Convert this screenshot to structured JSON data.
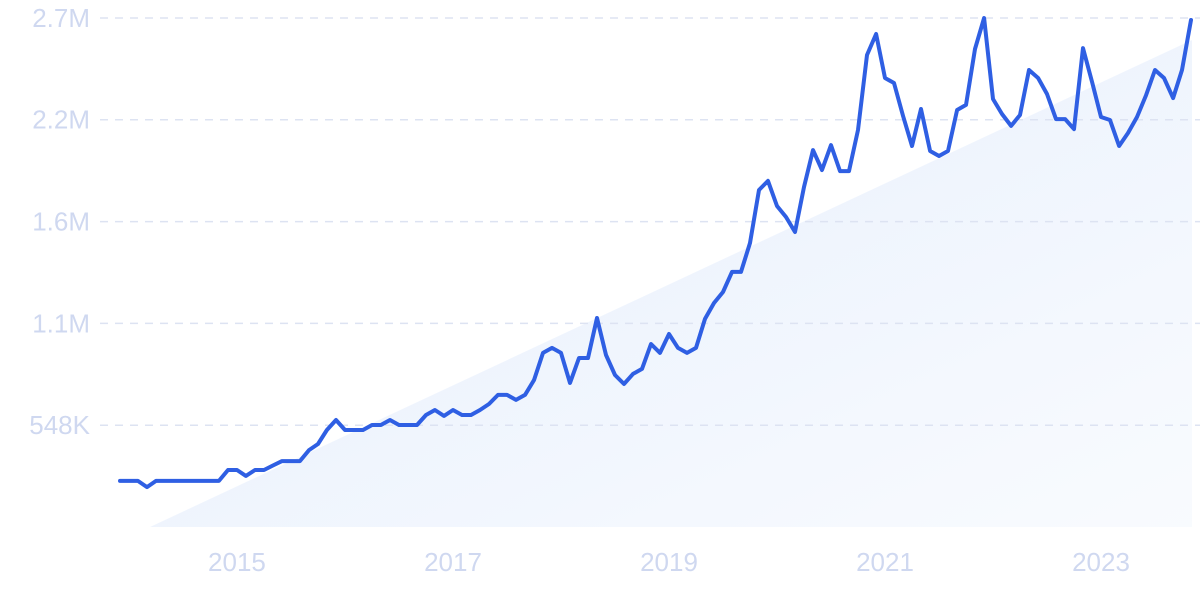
{
  "chart_data": {
    "type": "line",
    "x": [
      2013.917,
      2014.0,
      2014.083,
      2014.167,
      2014.25,
      2014.333,
      2014.417,
      2014.5,
      2014.583,
      2014.667,
      2014.75,
      2014.833,
      2014.917,
      2015.0,
      2015.083,
      2015.167,
      2015.25,
      2015.333,
      2015.417,
      2015.5,
      2015.583,
      2015.667,
      2015.75,
      2015.833,
      2015.917,
      2016.0,
      2016.083,
      2016.167,
      2016.25,
      2016.333,
      2016.417,
      2016.5,
      2016.583,
      2016.667,
      2016.75,
      2016.833,
      2016.917,
      2017.0,
      2017.083,
      2017.167,
      2017.25,
      2017.333,
      2017.417,
      2017.5,
      2017.583,
      2017.667,
      2017.75,
      2017.833,
      2017.917,
      2018.0,
      2018.083,
      2018.167,
      2018.25,
      2018.333,
      2018.417,
      2018.5,
      2018.583,
      2018.667,
      2018.75,
      2018.833,
      2018.917,
      2019.0,
      2019.083,
      2019.167,
      2019.25,
      2019.333,
      2019.417,
      2019.5,
      2019.583,
      2019.667,
      2019.75,
      2019.833,
      2019.917,
      2020.0,
      2020.083,
      2020.167,
      2020.25,
      2020.333,
      2020.417,
      2020.5,
      2020.583,
      2020.667,
      2020.75,
      2020.833,
      2020.917,
      2021.0,
      2021.083,
      2021.167,
      2021.25,
      2021.333,
      2021.417,
      2021.5,
      2021.583,
      2021.667,
      2021.75,
      2021.833,
      2021.917,
      2022.0,
      2022.083,
      2022.167,
      2022.25,
      2022.333,
      2022.417,
      2022.5,
      2022.583,
      2022.667,
      2022.75,
      2022.833,
      2022.917,
      2023.0,
      2023.083,
      2023.167,
      2023.25,
      2023.333,
      2023.417,
      2023.5,
      2023.583,
      2023.667,
      2023.75,
      2023.833
    ],
    "series": [
      {
        "color": "#2f5fe3",
        "values": [
          248000,
          248000,
          248000,
          215000,
          248000,
          248000,
          248000,
          248000,
          248000,
          248000,
          248000,
          248000,
          307000,
          307000,
          275000,
          307000,
          307000,
          331000,
          355000,
          355000,
          355000,
          414000,
          447000,
          522000,
          576000,
          522000,
          522000,
          522000,
          549000,
          549000,
          576000,
          549000,
          549000,
          549000,
          603000,
          630000,
          598000,
          630000,
          603000,
          603000,
          630000,
          662000,
          711000,
          711000,
          684000,
          711000,
          791000,
          937000,
          964000,
          937000,
          775000,
          910000,
          910000,
          1125000,
          926000,
          818000,
          770000,
          824000,
          851000,
          985000,
          937000,
          1039000,
          964000,
          937000,
          964000,
          1120000,
          1206000,
          1265000,
          1373000,
          1373000,
          1529000,
          1814000,
          1863000,
          1728000,
          1669000,
          1588000,
          1830000,
          2029000,
          1922000,
          2056000,
          1916000,
          1916000,
          2137000,
          2541000,
          2654000,
          2417000,
          2390000,
          2212000,
          2051000,
          2250000,
          2024000,
          1997000,
          2024000,
          2245000,
          2272000,
          2573000,
          2740000,
          2304000,
          2223000,
          2159000,
          2218000,
          2460000,
          2417000,
          2331000,
          2196000,
          2196000,
          2142000,
          2578000,
          2395000,
          2207000,
          2191000,
          2051000,
          2121000,
          2207000,
          2325000,
          2460000,
          2417000,
          2309000,
          2460000,
          2729000
        ]
      }
    ],
    "xlim": [
      2013.917,
      2023.833
    ],
    "xticks": [
      2015,
      2017,
      2019,
      2021,
      2023
    ],
    "ylim": [
      0,
      2740000
    ],
    "yticks": [
      {
        "value": 548000,
        "label": "548K"
      },
      {
        "value": 1096000,
        "label": "1.1M"
      },
      {
        "value": 1644000,
        "label": "1.6M"
      },
      {
        "value": 2192000,
        "label": "2.2M"
      },
      {
        "value": 2740000,
        "label": "2.7M"
      }
    ],
    "grid": true
  }
}
